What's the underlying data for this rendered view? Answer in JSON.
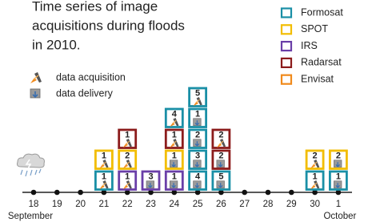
{
  "title_lines": [
    "Time series of image",
    "acquisitions during floods",
    "in 2010."
  ],
  "satellites": [
    {
      "name": "Formosat",
      "color": "#1a8fa6"
    },
    {
      "name": "SPOT",
      "color": "#f2bd00"
    },
    {
      "name": "IRS",
      "color": "#6a3fa8"
    },
    {
      "name": "Radarsat",
      "color": "#8c1c1c"
    },
    {
      "name": "Envisat",
      "color": "#f08a1c"
    }
  ],
  "icons": [
    "data acquisition",
    "data delivery"
  ],
  "months": [
    "September",
    "October"
  ],
  "days": [
    {
      "label": "18",
      "boxes": []
    },
    {
      "label": "19",
      "boxes": []
    },
    {
      "label": "20",
      "boxes": []
    },
    {
      "label": "21",
      "boxes": [
        {
          "satellite": "Formosat",
          "number": 1,
          "icon": "data acquisition"
        },
        {
          "satellite": "SPOT",
          "number": 1,
          "icon": "data acquisition"
        }
      ]
    },
    {
      "label": "22",
      "boxes": [
        {
          "satellite": "IRS",
          "number": 1,
          "icon": "data acquisition"
        },
        {
          "satellite": "SPOT",
          "number": 2,
          "icon": "data acquisition"
        },
        {
          "satellite": "Radarsat",
          "number": 1,
          "icon": "data acquisition"
        }
      ]
    },
    {
      "label": "23",
      "boxes": [
        {
          "satellite": "IRS",
          "number": 3,
          "icon": "data delivery"
        }
      ]
    },
    {
      "label": "24",
      "boxes": [
        {
          "satellite": "IRS",
          "number": 1,
          "icon": "data delivery"
        },
        {
          "satellite": "SPOT",
          "number": 1,
          "icon": "data delivery"
        },
        {
          "satellite": "Radarsat",
          "number": 1,
          "icon": "data acquisition"
        },
        {
          "satellite": "Formosat",
          "number": 4,
          "icon": "data acquisition"
        }
      ]
    },
    {
      "label": "25",
      "boxes": [
        {
          "satellite": "Formosat",
          "number": 4,
          "icon": "data delivery"
        },
        {
          "satellite": "Formosat",
          "number": 3,
          "icon": "data delivery"
        },
        {
          "satellite": "Formosat",
          "number": 2,
          "icon": "data delivery"
        },
        {
          "satellite": "Formosat",
          "number": 1,
          "icon": "data delivery"
        },
        {
          "satellite": "Formosat",
          "number": 5,
          "icon": "data acquisition"
        }
      ]
    },
    {
      "label": "26",
      "boxes": [
        {
          "satellite": "Formosat",
          "number": 5,
          "icon": "data delivery"
        },
        {
          "satellite": "Radarsat",
          "number": 2,
          "icon": "data delivery"
        },
        {
          "satellite": "Radarsat",
          "number": 2,
          "icon": "data acquisition"
        }
      ]
    },
    {
      "label": "27",
      "boxes": []
    },
    {
      "label": "28",
      "boxes": []
    },
    {
      "label": "29",
      "boxes": []
    },
    {
      "label": "30",
      "boxes": [
        {
          "satellite": "Formosat",
          "number": 1,
          "icon": "data acquisition"
        },
        {
          "satellite": "SPOT",
          "number": 2,
          "icon": "data acquisition"
        }
      ]
    },
    {
      "label": "1",
      "boxes": [
        {
          "satellite": "Formosat",
          "number": 1,
          "icon": "data delivery"
        },
        {
          "satellite": "SPOT",
          "number": 2,
          "icon": "data delivery"
        }
      ]
    }
  ]
}
